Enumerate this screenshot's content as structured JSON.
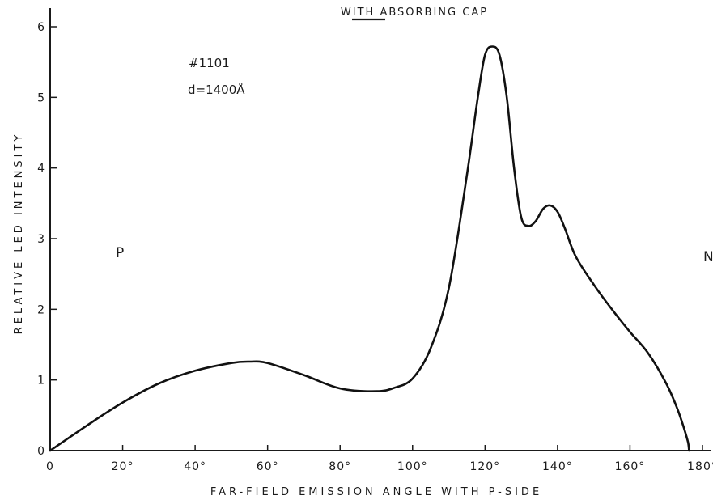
{
  "chart_data": {
    "type": "line",
    "title": "WITH ABSORBING CAP",
    "xlabel": "FAR-FIELD EMISSION ANGLE WITH P-SIDE",
    "ylabel": "RELATIVE LED INTENSITY",
    "xlim": [
      0,
      180
    ],
    "ylim": [
      0,
      6
    ],
    "x_ticks": [
      "0",
      "20°",
      "40°",
      "60°",
      "80°",
      "100°",
      "120°",
      "140°",
      "160°",
      "180°"
    ],
    "y_ticks": [
      "0",
      "1",
      "2",
      "3",
      "4",
      "5",
      "6"
    ],
    "annotations": {
      "sample": "#1101",
      "thickness": "d=1400Å",
      "left_side": "P",
      "right_side": "N"
    },
    "grid": false,
    "series": [
      {
        "x": [
          0,
          10,
          20,
          30,
          40,
          50,
          55,
          60,
          70,
          80,
          90,
          95,
          100,
          105,
          110,
          115,
          118,
          120,
          122,
          124,
          126,
          128,
          130,
          132,
          134,
          136,
          138,
          140,
          142,
          145,
          150,
          155,
          160,
          165,
          170,
          173,
          175,
          176,
          176.3
        ],
        "y": [
          0,
          0.35,
          0.68,
          0.95,
          1.13,
          1.24,
          1.26,
          1.24,
          1.07,
          0.88,
          0.84,
          0.89,
          1.02,
          1.45,
          2.3,
          3.9,
          5.0,
          5.6,
          5.72,
          5.6,
          5.0,
          4.0,
          3.3,
          3.18,
          3.25,
          3.42,
          3.47,
          3.38,
          3.15,
          2.75,
          2.35,
          2.0,
          1.68,
          1.38,
          0.95,
          0.6,
          0.3,
          0.12,
          0
        ]
      }
    ]
  }
}
